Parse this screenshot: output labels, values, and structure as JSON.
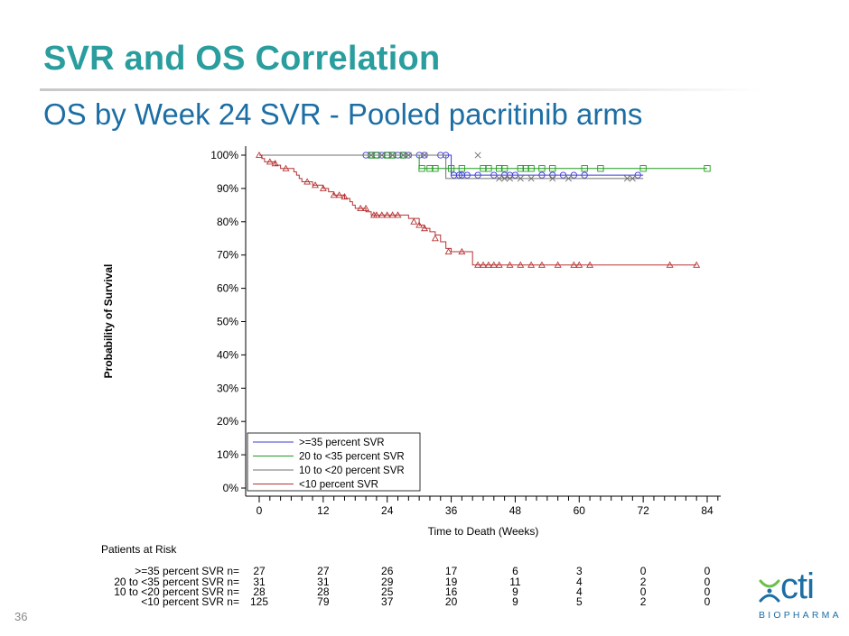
{
  "slide": {
    "title": "SVR and OS Correlation",
    "subtitle": "OS by Week 24 SVR - Pooled pacritinib arms",
    "slide_number": "36",
    "title_color": "#2a9d9e",
    "subtitle_color": "#1c6ea4"
  },
  "logo": {
    "text": "cti",
    "subtext": "BIOPHARMA",
    "mark_icon": "cti-logo-mark-icon",
    "color": "#1c6ea4",
    "accent_color": "#6cc04a"
  },
  "chart_data": {
    "type": "line",
    "subtype": "kaplan-meier",
    "xlabel": "Time to Death (Weeks)",
    "ylabel": "Probability of Survival",
    "xlim": [
      0,
      86
    ],
    "ylim": [
      0,
      100
    ],
    "xticks": [
      0,
      12,
      24,
      36,
      48,
      60,
      72,
      84
    ],
    "yticks": [
      "0%",
      "10%",
      "20%",
      "30%",
      "40%",
      "50%",
      "60%",
      "70%",
      "80%",
      "90%",
      "100%"
    ],
    "grid": false,
    "legend_position": "bottom-left",
    "series": [
      {
        "name": ">=35 percent SVR",
        "color": "#3b3bd6",
        "marker": "circle",
        "steps": [
          [
            0,
            100
          ],
          [
            36,
            94
          ],
          [
            86,
            94
          ]
        ],
        "end": 72,
        "censored": [
          [
            20,
            100
          ],
          [
            21,
            100
          ],
          [
            22,
            100
          ],
          [
            23,
            100
          ],
          [
            24,
            100
          ],
          [
            25,
            100
          ],
          [
            26,
            100
          ],
          [
            27,
            100
          ],
          [
            28,
            100
          ],
          [
            30,
            100
          ],
          [
            31,
            100
          ],
          [
            34,
            100
          ],
          [
            35,
            100
          ],
          [
            36.5,
            94
          ],
          [
            37.5,
            94
          ],
          [
            38,
            94
          ],
          [
            39,
            94
          ],
          [
            41,
            94
          ],
          [
            44,
            94
          ],
          [
            46,
            94
          ],
          [
            47,
            94
          ],
          [
            48,
            94
          ],
          [
            53,
            94
          ],
          [
            55,
            94
          ],
          [
            57,
            94
          ],
          [
            59,
            94
          ],
          [
            61,
            94
          ],
          [
            71,
            94
          ]
        ]
      },
      {
        "name": "20 to <35 percent SVR",
        "color": "#1e9a1e",
        "marker": "square",
        "steps": [
          [
            0,
            100
          ],
          [
            30,
            96
          ],
          [
            86,
            96
          ]
        ],
        "end": 84,
        "censored": [
          [
            21,
            100
          ],
          [
            22,
            100
          ],
          [
            24,
            100
          ],
          [
            25,
            100
          ],
          [
            27,
            100
          ],
          [
            30.5,
            96
          ],
          [
            32,
            96
          ],
          [
            33,
            96
          ],
          [
            36,
            96
          ],
          [
            38,
            96
          ],
          [
            42,
            96
          ],
          [
            43,
            96
          ],
          [
            45,
            96
          ],
          [
            46,
            96
          ],
          [
            49,
            96
          ],
          [
            50,
            96
          ],
          [
            51,
            96
          ],
          [
            53,
            96
          ],
          [
            55,
            96
          ],
          [
            61,
            96
          ],
          [
            64,
            96
          ],
          [
            72,
            96
          ],
          [
            84,
            96
          ]
        ]
      },
      {
        "name": "10 to <20 percent SVR",
        "color": "#707070",
        "marker": "x",
        "steps": [
          [
            0,
            100
          ],
          [
            35,
            93
          ],
          [
            86,
            93
          ]
        ],
        "end": 72,
        "censored": [
          [
            21,
            100
          ],
          [
            23,
            100
          ],
          [
            25,
            100
          ],
          [
            27,
            100
          ],
          [
            28,
            100
          ],
          [
            31,
            100
          ],
          [
            41,
            100
          ],
          [
            45,
            93
          ],
          [
            46,
            93
          ],
          [
            47,
            93
          ],
          [
            49,
            93
          ],
          [
            51,
            93
          ],
          [
            55,
            93
          ],
          [
            58,
            93
          ],
          [
            69,
            93
          ],
          [
            70,
            93
          ]
        ]
      },
      {
        "name": "<10 percent SVR",
        "color": "#b83232",
        "marker": "triangle",
        "steps": [
          [
            0,
            100
          ],
          [
            0.5,
            99
          ],
          [
            1,
            98
          ],
          [
            2,
            98
          ],
          [
            3,
            97
          ],
          [
            4,
            96
          ],
          [
            6.5,
            95
          ],
          [
            7,
            94
          ],
          [
            7.5,
            93
          ],
          [
            8,
            92
          ],
          [
            10,
            91
          ],
          [
            12,
            90
          ],
          [
            13,
            89
          ],
          [
            14,
            88
          ],
          [
            15,
            88
          ],
          [
            16,
            87
          ],
          [
            17,
            86
          ],
          [
            17.5,
            85
          ],
          [
            18,
            84
          ],
          [
            20,
            83
          ],
          [
            21,
            82
          ],
          [
            27,
            82
          ],
          [
            28,
            81
          ],
          [
            30,
            79
          ],
          [
            31,
            78
          ],
          [
            32,
            77
          ],
          [
            33,
            76
          ],
          [
            34,
            74
          ],
          [
            35,
            72
          ],
          [
            36,
            71
          ],
          [
            40,
            67
          ],
          [
            86,
            67
          ]
        ],
        "end": 82,
        "censored": [
          [
            0,
            100
          ],
          [
            2,
            98
          ],
          [
            3,
            97.5
          ],
          [
            5,
            96
          ],
          [
            9,
            92
          ],
          [
            10.5,
            91
          ],
          [
            12,
            90
          ],
          [
            14,
            88
          ],
          [
            15,
            88
          ],
          [
            16,
            87.5
          ],
          [
            19,
            84
          ],
          [
            20,
            84
          ],
          [
            21.5,
            82
          ],
          [
            22,
            82
          ],
          [
            23,
            82
          ],
          [
            24,
            82
          ],
          [
            25,
            82
          ],
          [
            26,
            82
          ],
          [
            29,
            80
          ],
          [
            30,
            79
          ],
          [
            31,
            78
          ],
          [
            33,
            75
          ],
          [
            35.5,
            71
          ],
          [
            38,
            71
          ],
          [
            41,
            67
          ],
          [
            42,
            67
          ],
          [
            43,
            67
          ],
          [
            44,
            67
          ],
          [
            45,
            67
          ],
          [
            47,
            67
          ],
          [
            49,
            67
          ],
          [
            51,
            67
          ],
          [
            53,
            67
          ],
          [
            56,
            67
          ],
          [
            59,
            67
          ],
          [
            60,
            67
          ],
          [
            62,
            67
          ],
          [
            77,
            67
          ],
          [
            82,
            67
          ]
        ]
      }
    ],
    "risk_table": {
      "title": "Patients at Risk",
      "times": [
        0,
        12,
        24,
        36,
        48,
        60,
        72,
        84
      ],
      "rows": [
        {
          "label": ">=35 percent SVR n=",
          "counts": [
            27,
            27,
            26,
            17,
            6,
            3,
            0,
            0
          ]
        },
        {
          "label": "20 to <35 percent SVR n=",
          "counts": [
            31,
            31,
            29,
            19,
            11,
            4,
            2,
            0
          ]
        },
        {
          "label": "10 to <20 percent SVR n=",
          "counts": [
            28,
            28,
            25,
            16,
            9,
            4,
            0,
            0
          ]
        },
        {
          "label": "<10 percent SVR n=",
          "counts": [
            125,
            79,
            37,
            20,
            9,
            5,
            2,
            0
          ]
        }
      ]
    }
  }
}
